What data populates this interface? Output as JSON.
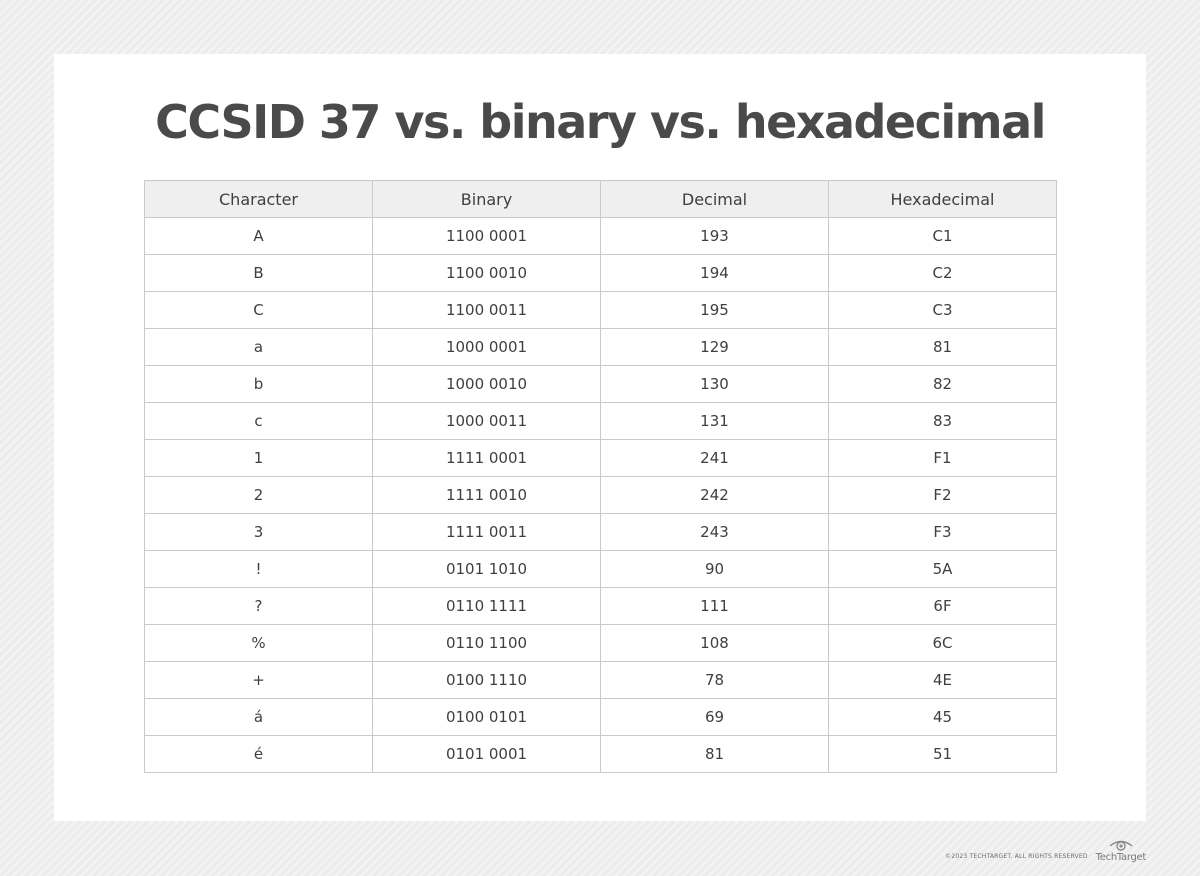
{
  "title": "CCSID 37 vs. binary vs. hexadecimal",
  "table": {
    "headers": [
      "Character",
      "Binary",
      "Decimal",
      "Hexadecimal"
    ],
    "rows": [
      [
        "A",
        "1100 0001",
        "193",
        "C1"
      ],
      [
        "B",
        "1100 0010",
        "194",
        "C2"
      ],
      [
        "C",
        "1100 0011",
        "195",
        "C3"
      ],
      [
        "a",
        "1000 0001",
        "129",
        "81"
      ],
      [
        "b",
        "1000 0010",
        "130",
        "82"
      ],
      [
        "c",
        "1000 0011",
        "131",
        "83"
      ],
      [
        "1",
        "1111 0001",
        "241",
        "F1"
      ],
      [
        "2",
        "1111 0010",
        "242",
        "F2"
      ],
      [
        "3",
        "1111 0011",
        "243",
        "F3"
      ],
      [
        "!",
        "0101 1010",
        "90",
        "5A"
      ],
      [
        "?",
        "0110 1111",
        "111",
        "6F"
      ],
      [
        "%",
        "0110 1100",
        "108",
        "6C"
      ],
      [
        "+",
        "0100 1110",
        "78",
        "4E"
      ],
      [
        "á",
        "0100 0101",
        "69",
        "45"
      ],
      [
        "é",
        "0101 0001",
        "81",
        "51"
      ]
    ]
  },
  "footer": {
    "copyright": "©2023 TECHTARGET. ALL RIGHTS RESERVED",
    "brand": "TechTarget",
    "brand_icon": "eye-logo-icon"
  },
  "colors": {
    "title": "#4a4a4c",
    "header_bg": "#efefef",
    "border": "#c9c9c9",
    "card_bg": "#ffffff"
  }
}
